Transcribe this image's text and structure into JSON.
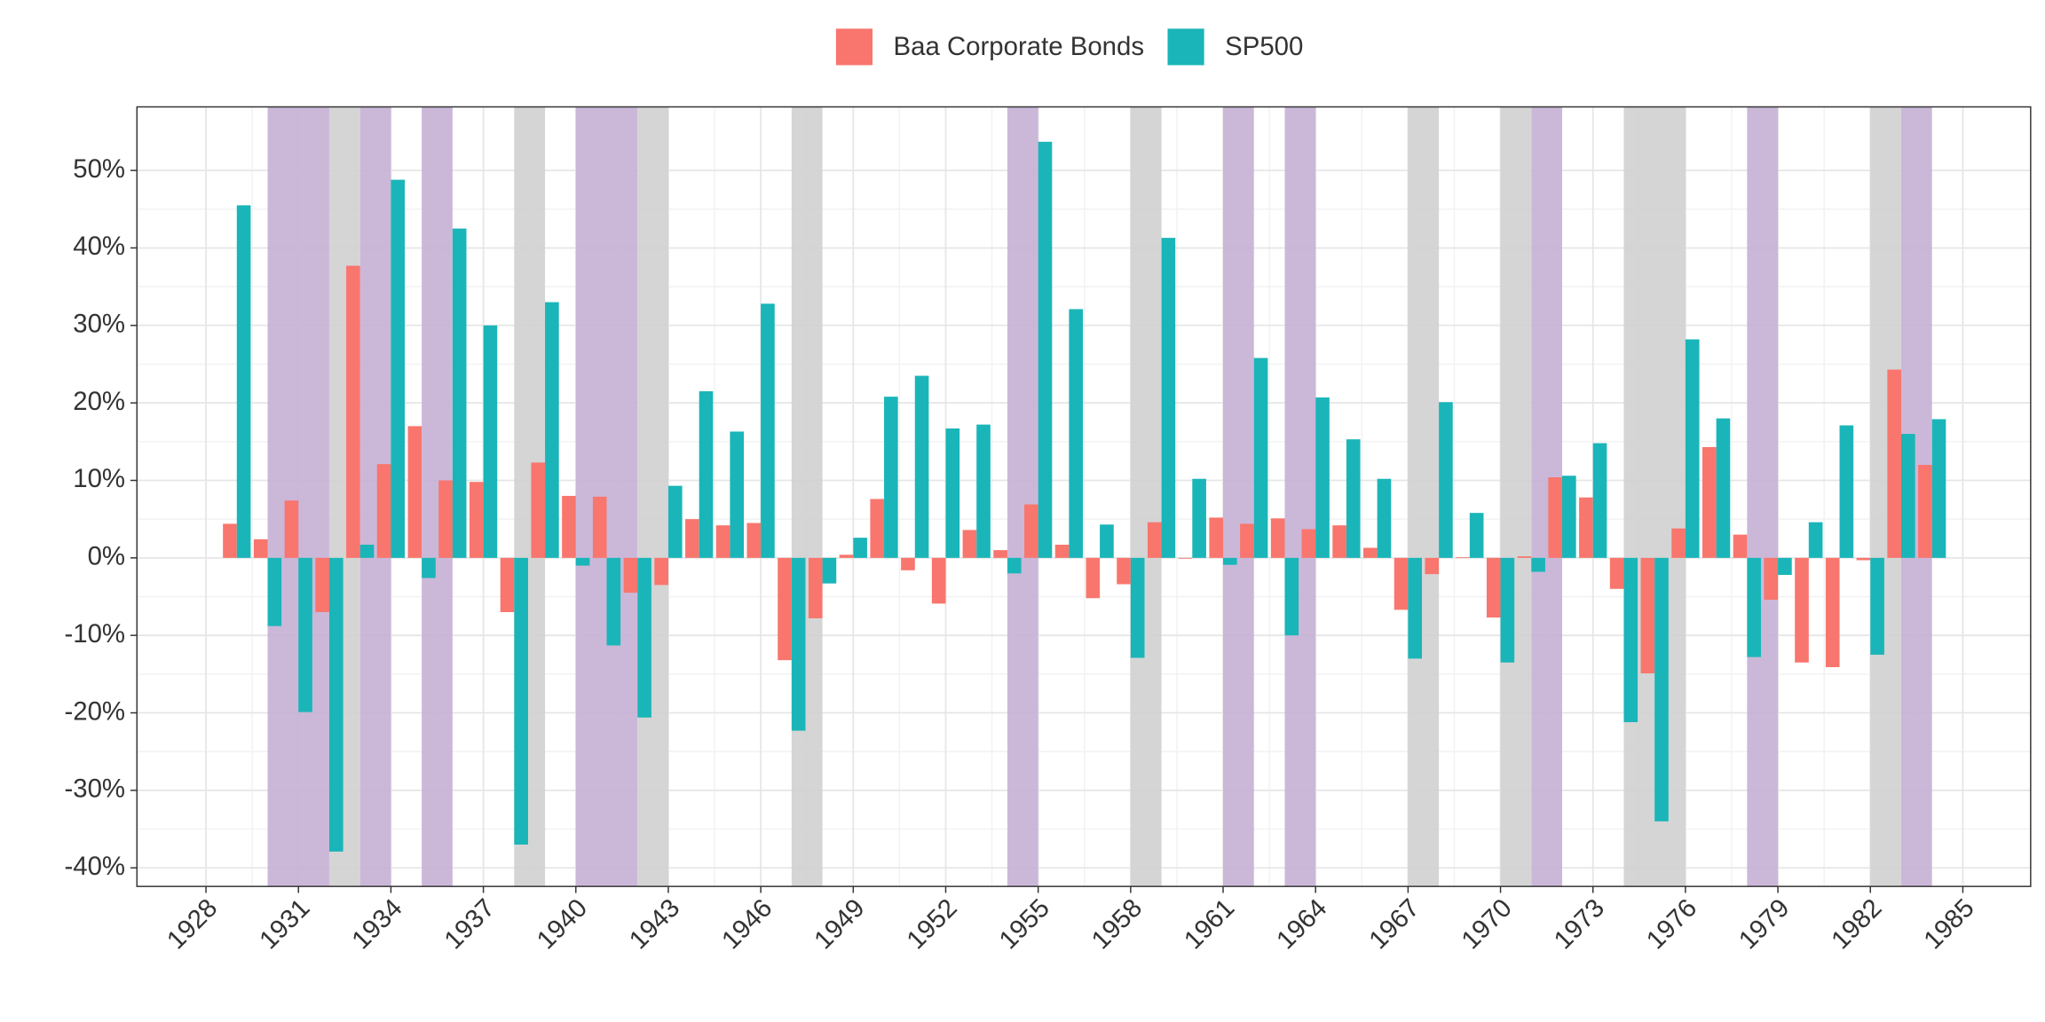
{
  "chart_data": {
    "type": "bar",
    "x": [
      1929,
      1930,
      1931,
      1932,
      1933,
      1934,
      1935,
      1936,
      1937,
      1938,
      1939,
      1940,
      1941,
      1942,
      1943,
      1944,
      1945,
      1946,
      1947,
      1948,
      1949,
      1950,
      1951,
      1952,
      1953,
      1954,
      1955,
      1956,
      1957,
      1958,
      1959,
      1960,
      1961,
      1962,
      1963,
      1964,
      1965,
      1966,
      1967,
      1968,
      1969,
      1970,
      1971,
      1972,
      1973,
      1974,
      1975,
      1976,
      1977,
      1978,
      1979,
      1980,
      1981,
      1982,
      1983,
      1984
    ],
    "series": [
      {
        "name": "Baa Corporate Bonds",
        "color": "#f8766d",
        "values": [
          4.4,
          2.4,
          7.4,
          -7.0,
          37.7,
          12.1,
          17.0,
          10.0,
          9.8,
          -7.0,
          12.3,
          8.0,
          7.9,
          -4.5,
          -3.5,
          5.0,
          4.2,
          4.5,
          -13.2,
          -7.8,
          0.4,
          7.6,
          -1.6,
          -5.9,
          3.6,
          1.0,
          6.9,
          1.7,
          -5.2,
          -3.4,
          4.6,
          -0.1,
          5.2,
          4.4,
          5.1,
          3.7,
          4.2,
          1.3,
          -6.7,
          -2.1,
          0.1,
          -7.7,
          0.2,
          10.4,
          7.8,
          -4.0,
          -14.9,
          3.8,
          14.3,
          3.0,
          -5.4,
          -13.5,
          -14.1,
          -0.3,
          24.3,
          12.0
        ]
      },
      {
        "name": "SP500",
        "color": "#1ab5b8",
        "values": [
          45.5,
          -8.8,
          -19.9,
          -37.9,
          1.7,
          48.8,
          -2.6,
          42.5,
          30.0,
          -37.0,
          33.0,
          -1.0,
          -11.3,
          -20.6,
          9.3,
          21.5,
          16.3,
          32.8,
          -22.3,
          -3.3,
          2.6,
          20.8,
          23.5,
          16.7,
          17.2,
          -2.0,
          53.7,
          32.1,
          4.3,
          -12.9,
          41.3,
          10.2,
          -0.9,
          25.8,
          -10.0,
          20.7,
          15.3,
          10.2,
          -13.0,
          20.1,
          5.8,
          -13.5,
          -1.8,
          10.6,
          14.8,
          -21.2,
          -34.0,
          28.2,
          18.0,
          -12.8,
          -2.2,
          4.6,
          17.1,
          -12.5,
          16.0,
          17.9
        ]
      }
    ],
    "bands": [
      {
        "color": "#c5b0d5",
        "ranges": [
          [
            1930,
            1932
          ],
          [
            1933,
            1934
          ],
          [
            1935,
            1936
          ],
          [
            1940,
            1942
          ],
          [
            1954,
            1955
          ],
          [
            1961,
            1962
          ],
          [
            1963,
            1964
          ],
          [
            1971,
            1972
          ],
          [
            1978,
            1979
          ],
          [
            1983,
            1984
          ]
        ]
      },
      {
        "color": "#d0d0d0",
        "ranges": [
          [
            1932,
            1933
          ],
          [
            1938,
            1939
          ],
          [
            1942,
            1943
          ],
          [
            1947,
            1948
          ],
          [
            1958,
            1959
          ],
          [
            1967,
            1968
          ],
          [
            1970,
            1971
          ],
          [
            1974,
            1976
          ],
          [
            1982,
            1983
          ]
        ]
      }
    ],
    "xlim": [
      1925.76,
      1987.2
    ],
    "xticks": [
      1928,
      1931,
      1934,
      1937,
      1940,
      1943,
      1946,
      1949,
      1952,
      1955,
      1958,
      1961,
      1964,
      1967,
      1970,
      1973,
      1976,
      1979,
      1982,
      1985
    ],
    "ylim": [
      -42.4,
      58.2
    ],
    "yticks": [
      {
        "value": -40,
        "label": "-40%"
      },
      {
        "value": -30,
        "label": "-30%"
      },
      {
        "value": -20,
        "label": "-20%"
      },
      {
        "value": -10,
        "label": "-10%"
      },
      {
        "value": 0,
        "label": "0%"
      },
      {
        "value": 10,
        "label": "10%"
      },
      {
        "value": 20,
        "label": "20%"
      },
      {
        "value": 30,
        "label": "30%"
      },
      {
        "value": 40,
        "label": "40%"
      },
      {
        "value": 50,
        "label": "50%"
      }
    ],
    "grid": true,
    "legend": "top"
  }
}
